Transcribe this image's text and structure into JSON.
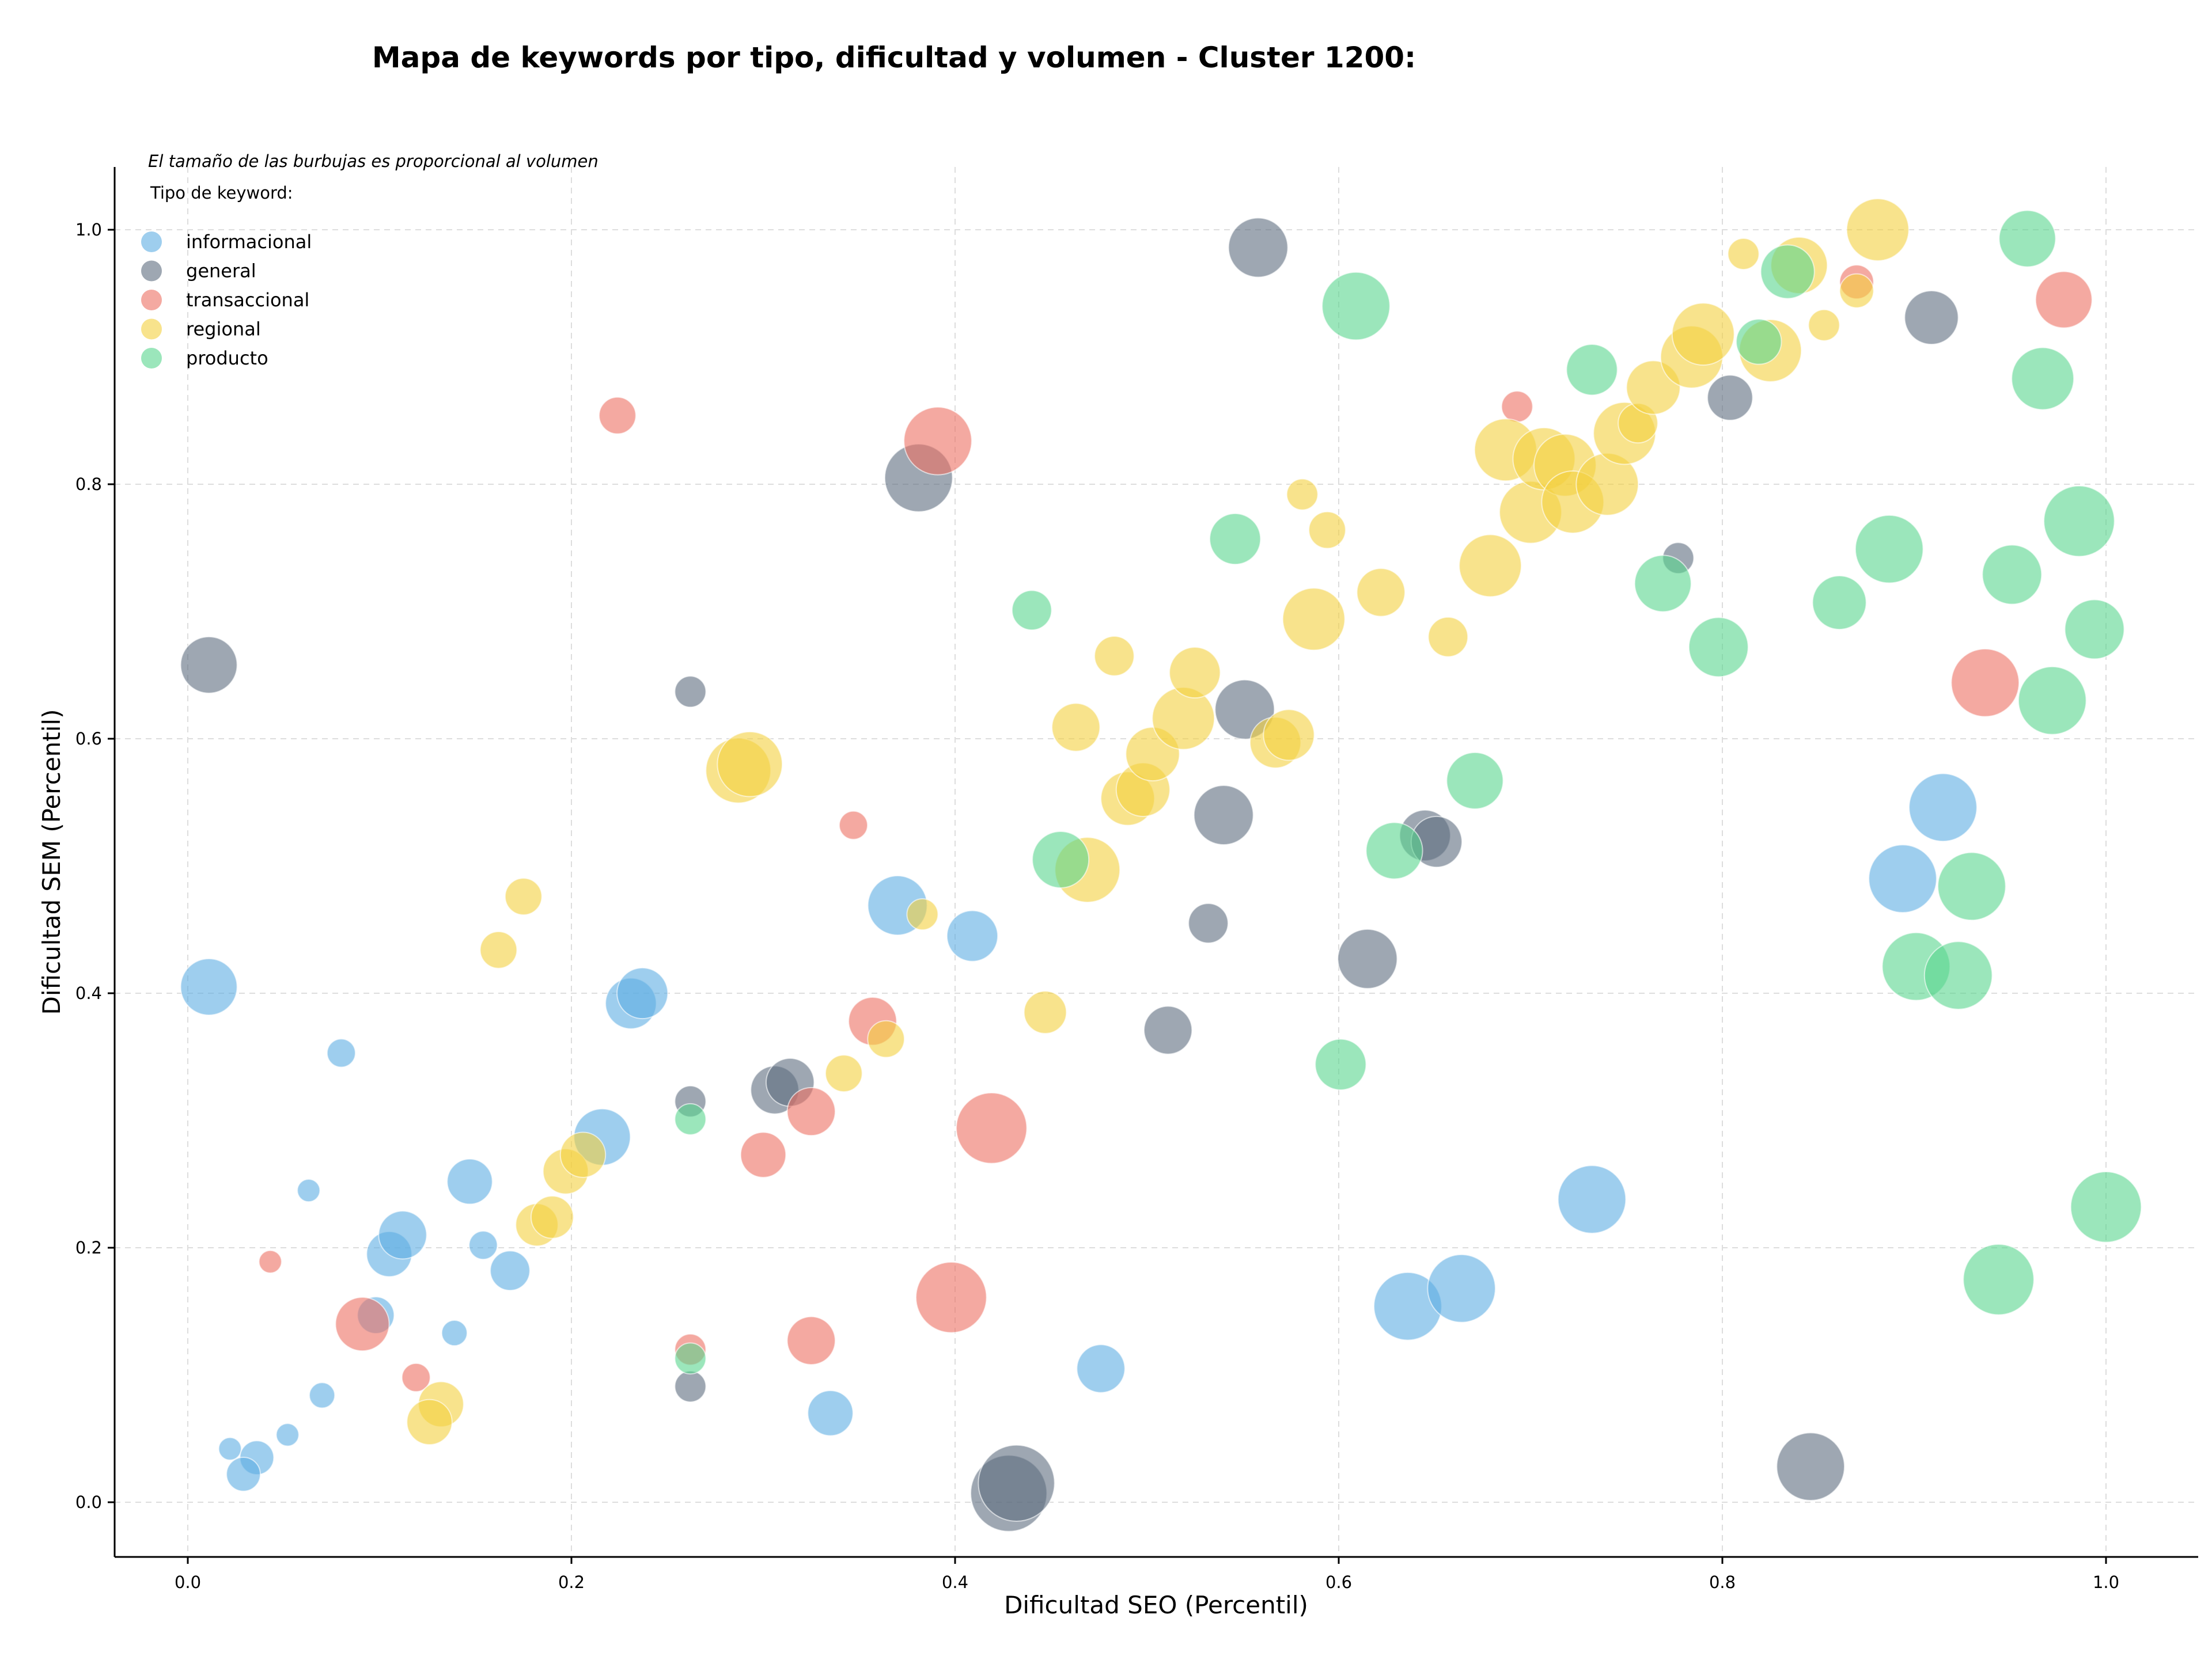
{
  "chart_data": {
    "type": "scatter",
    "title": "Mapa de keywords por tipo, dificultad y volumen - Cluster 1200:",
    "xlabel": "Dificultad SEO (Percentil)",
    "ylabel": "Dificultad SEM (Percentil)",
    "note": "El tamaño de las burbujas es proporcional al volumen",
    "legend_title": "Tipo de keyword:",
    "legend_position": "top-left",
    "grid": true,
    "xlim": [
      -0.04,
      1.05
    ],
    "ylim": [
      -0.04,
      1.05
    ],
    "xticks": [
      "0.0",
      "0.2",
      "0.4",
      "0.6",
      "0.8",
      "1.0"
    ],
    "yticks": [
      "0.0",
      "0.2",
      "0.4",
      "0.6",
      "0.8",
      "1.0"
    ],
    "series": [
      {
        "name": "informacional",
        "color": "#5DADE2",
        "points": [
          [
            0.011,
            0.405,
            20
          ],
          [
            0.08,
            0.353,
            10
          ],
          [
            0.063,
            0.245,
            8
          ],
          [
            0.147,
            0.252,
            16
          ],
          [
            0.105,
            0.195,
            16
          ],
          [
            0.112,
            0.21,
            17
          ],
          [
            0.154,
            0.202,
            10
          ],
          [
            0.168,
            0.182,
            14
          ],
          [
            0.098,
            0.147,
            13
          ],
          [
            0.139,
            0.133,
            9
          ],
          [
            0.07,
            0.084,
            9
          ],
          [
            0.052,
            0.053,
            8
          ],
          [
            0.022,
            0.042,
            8
          ],
          [
            0.036,
            0.035,
            12
          ],
          [
            0.029,
            0.022,
            12
          ],
          [
            0.216,
            0.287,
            20
          ],
          [
            0.231,
            0.392,
            18
          ],
          [
            0.237,
            0.4,
            18
          ],
          [
            0.37,
            0.469,
            21
          ],
          [
            0.409,
            0.445,
            18
          ],
          [
            0.335,
            0.07,
            16
          ],
          [
            0.476,
            0.105,
            17
          ],
          [
            0.636,
            0.154,
            24
          ],
          [
            0.664,
            0.168,
            24
          ],
          [
            0.732,
            0.238,
            24
          ],
          [
            0.894,
            0.49,
            24
          ],
          [
            0.915,
            0.546,
            24
          ]
        ]
      },
      {
        "name": "general",
        "color": "#5D6D7E",
        "points": [
          [
            0.011,
            0.658,
            20
          ],
          [
            0.262,
            0.637,
            11
          ],
          [
            0.262,
            0.315,
            11
          ],
          [
            0.262,
            0.091,
            11
          ],
          [
            0.306,
            0.324,
            17
          ],
          [
            0.314,
            0.33,
            17
          ],
          [
            0.381,
            0.805,
            24
          ],
          [
            0.428,
            0.007,
            27
          ],
          [
            0.432,
            0.015,
            27
          ],
          [
            0.511,
            0.371,
            17
          ],
          [
            0.532,
            0.455,
            14
          ],
          [
            0.54,
            0.54,
            21
          ],
          [
            0.551,
            0.623,
            21
          ],
          [
            0.558,
            0.986,
            21
          ],
          [
            0.615,
            0.427,
            21
          ],
          [
            0.645,
            0.524,
            18
          ],
          [
            0.651,
            0.519,
            18
          ],
          [
            0.777,
            0.742,
            11
          ],
          [
            0.804,
            0.868,
            16
          ],
          [
            0.846,
            0.028,
            24
          ],
          [
            0.909,
            0.931,
            19
          ]
        ]
      },
      {
        "name": "transaccional",
        "color": "#EC7063",
        "points": [
          [
            0.224,
            0.854,
            13
          ],
          [
            0.043,
            0.189,
            8
          ],
          [
            0.091,
            0.14,
            19
          ],
          [
            0.119,
            0.098,
            10
          ],
          [
            0.262,
            0.12,
            11
          ],
          [
            0.3,
            0.273,
            16
          ],
          [
            0.325,
            0.307,
            17
          ],
          [
            0.325,
            0.127,
            17
          ],
          [
            0.347,
            0.532,
            10
          ],
          [
            0.357,
            0.378,
            17
          ],
          [
            0.391,
            0.834,
            24
          ],
          [
            0.398,
            0.161,
            25
          ],
          [
            0.419,
            0.294,
            25
          ],
          [
            0.693,
            0.861,
            11
          ],
          [
            0.87,
            0.959,
            12
          ],
          [
            0.937,
            0.644,
            24
          ],
          [
            0.978,
            0.945,
            20
          ]
        ]
      },
      {
        "name": "regional",
        "color": "#F4D03F",
        "points": [
          [
            0.175,
            0.476,
            13
          ],
          [
            0.162,
            0.434,
            13
          ],
          [
            0.132,
            0.077,
            16
          ],
          [
            0.126,
            0.063,
            16
          ],
          [
            0.182,
            0.218,
            15
          ],
          [
            0.19,
            0.224,
            15
          ],
          [
            0.197,
            0.26,
            16
          ],
          [
            0.206,
            0.273,
            16
          ],
          [
            0.287,
            0.575,
            23
          ],
          [
            0.293,
            0.58,
            23
          ],
          [
            0.342,
            0.337,
            13
          ],
          [
            0.364,
            0.364,
            13
          ],
          [
            0.383,
            0.462,
            11
          ],
          [
            0.447,
            0.385,
            15
          ],
          [
            0.463,
            0.609,
            17
          ],
          [
            0.469,
            0.497,
            23
          ],
          [
            0.483,
            0.665,
            14
          ],
          [
            0.49,
            0.553,
            19
          ],
          [
            0.498,
            0.56,
            19
          ],
          [
            0.503,
            0.588,
            19
          ],
          [
            0.519,
            0.616,
            22
          ],
          [
            0.525,
            0.652,
            18
          ],
          [
            0.567,
            0.597,
            18
          ],
          [
            0.574,
            0.603,
            18
          ],
          [
            0.587,
            0.694,
            22
          ],
          [
            0.581,
            0.792,
            11
          ],
          [
            0.594,
            0.764,
            13
          ],
          [
            0.622,
            0.715,
            17
          ],
          [
            0.657,
            0.68,
            14
          ],
          [
            0.679,
            0.736,
            22
          ],
          [
            0.687,
            0.827,
            22
          ],
          [
            0.7,
            0.778,
            22
          ],
          [
            0.707,
            0.82,
            22
          ],
          [
            0.718,
            0.815,
            22
          ],
          [
            0.722,
            0.786,
            22
          ],
          [
            0.74,
            0.8,
            22
          ],
          [
            0.749,
            0.84,
            22
          ],
          [
            0.756,
            0.848,
            14
          ],
          [
            0.764,
            0.876,
            19
          ],
          [
            0.784,
            0.9,
            22
          ],
          [
            0.79,
            0.918,
            22
          ],
          [
            0.811,
            0.981,
            11
          ],
          [
            0.825,
            0.905,
            22
          ],
          [
            0.84,
            0.972,
            20
          ],
          [
            0.853,
            0.925,
            11
          ],
          [
            0.87,
            0.952,
            12
          ],
          [
            0.881,
            1.0,
            22
          ]
        ]
      },
      {
        "name": "producto",
        "color": "#58D68D",
        "points": [
          [
            0.262,
            0.301,
            11
          ],
          [
            0.262,
            0.113,
            11
          ],
          [
            0.44,
            0.701,
            14
          ],
          [
            0.455,
            0.505,
            20
          ],
          [
            0.546,
            0.757,
            18
          ],
          [
            0.601,
            0.344,
            18
          ],
          [
            0.609,
            0.94,
            24
          ],
          [
            0.629,
            0.512,
            20
          ],
          [
            0.671,
            0.567,
            20
          ],
          [
            0.732,
            0.89,
            18
          ],
          [
            0.769,
            0.722,
            20
          ],
          [
            0.798,
            0.672,
            21
          ],
          [
            0.819,
            0.912,
            16
          ],
          [
            0.834,
            0.967,
            19
          ],
          [
            0.861,
            0.707,
            19
          ],
          [
            0.887,
            0.749,
            24
          ],
          [
            0.901,
            0.421,
            24
          ],
          [
            0.923,
            0.414,
            24
          ],
          [
            0.93,
            0.484,
            24
          ],
          [
            0.944,
            0.175,
            25
          ],
          [
            0.951,
            0.729,
            21
          ],
          [
            0.959,
            0.993,
            20
          ],
          [
            0.967,
            0.883,
            22
          ],
          [
            0.972,
            0.63,
            24
          ],
          [
            0.986,
            0.771,
            25
          ],
          [
            0.994,
            0.686,
            21
          ],
          [
            1.0,
            0.232,
            25
          ]
        ]
      }
    ]
  }
}
